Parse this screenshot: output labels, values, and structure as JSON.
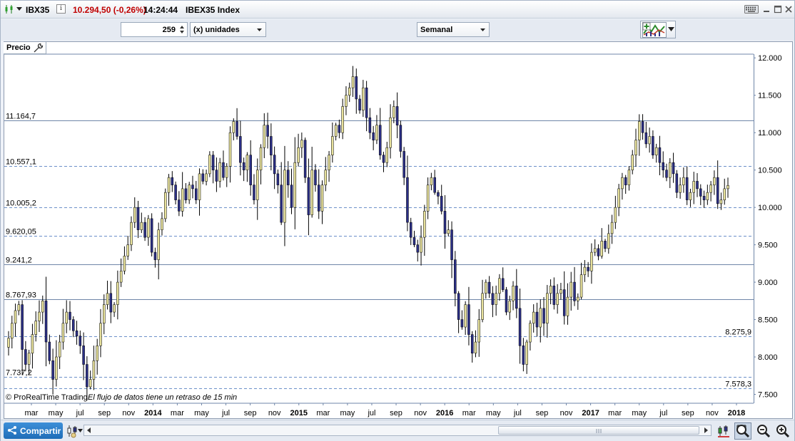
{
  "window": {
    "symbol": "IBX35",
    "info_icon": "i",
    "quote": "10.294,50 (-0,26%)",
    "time": "14:24:44",
    "instrument_name": "IBEX35 Index"
  },
  "toolbar": {
    "units_value": "259",
    "units_label": "(x) unidades",
    "period_label": "Semanal"
  },
  "chart": {
    "price_tab_label": "Precio",
    "footer_brand": "© ProRealTime Trading",
    "footer_note": "El flujo de datos tiene un retraso de 15 min"
  },
  "bottombar": {
    "share_label": "Compartir"
  },
  "colors": {
    "bull_body": "#e8e29c",
    "bear_body": "#2b2f86",
    "wick": "#000000",
    "solid_line": "#6f86a8",
    "dashed_line": "#6b8fc9",
    "accent_quote": "#c00000",
    "share_button": "#2a7fcf"
  },
  "chart_data": {
    "type": "candlestick",
    "period": "Semanal",
    "ylim": [
      7400,
      12050
    ],
    "y_ticks": [
      7500,
      8000,
      8500,
      9000,
      9500,
      10000,
      10500,
      11000,
      11500,
      12000
    ],
    "y_tick_labels": [
      "7.500",
      "8.000",
      "8.500",
      "9.000",
      "9.500",
      "10.000",
      "10.500",
      "11.000",
      "11.500",
      "12.000"
    ],
    "x_labels": [
      "mar",
      "may",
      "jul",
      "sep",
      "nov",
      "2014",
      "mar",
      "may",
      "jul",
      "sep",
      "nov",
      "2015",
      "mar",
      "may",
      "jul",
      "sep",
      "nov",
      "2016",
      "mar",
      "may",
      "jul",
      "sep",
      "nov",
      "2017",
      "mar",
      "may",
      "jul",
      "sep",
      "nov",
      "2018"
    ],
    "levels": [
      {
        "value": 11164.7,
        "label": "11.164,7",
        "style": "solid",
        "label_side": "left"
      },
      {
        "value": 10557.1,
        "label": "10.557,1",
        "style": "dashed",
        "label_side": "left"
      },
      {
        "value": 10005.2,
        "label": "10.005,2",
        "style": "dashed",
        "label_side": "left"
      },
      {
        "value": 9620.05,
        "label": "9.620,05",
        "style": "dashed",
        "label_side": "left"
      },
      {
        "value": 9241.2,
        "label": "9.241,2",
        "style": "solid",
        "label_side": "left"
      },
      {
        "value": 8767.93,
        "label": "8.767,93",
        "style": "solid",
        "label_side": "left"
      },
      {
        "value": 8275.9,
        "label": "8.275,9",
        "style": "dashed",
        "label_side": "right"
      },
      {
        "value": 7737.2,
        "label": "7.737,2",
        "style": "dashed",
        "label_side": "left"
      },
      {
        "value": 7578.3,
        "label": "7.578,3",
        "style": "dashed",
        "label_side": "right"
      }
    ],
    "close_series": [
      8250,
      8450,
      8620,
      8700,
      8100,
      7900,
      8050,
      8300,
      8480,
      8600,
      8750,
      8200,
      7950,
      7700,
      8000,
      8200,
      8450,
      8600,
      8500,
      8350,
      8280,
      8150,
      7900,
      7600,
      7700,
      7950,
      8150,
      8450,
      8700,
      8850,
      8600,
      8700,
      9000,
      9150,
      9350,
      9500,
      9800,
      10000,
      9700,
      9800,
      9600,
      9850,
      9400,
      9300,
      9700,
      9850,
      10200,
      10400,
      10300,
      10100,
      9950,
      10250,
      10100,
      10300,
      10250,
      10100,
      10450,
      10350,
      10450,
      10700,
      10500,
      10350,
      10600,
      10400,
      10550,
      11000,
      11150,
      10950,
      10600,
      10500,
      10700,
      10300,
      10100,
      10500,
      10800,
      11100,
      10950,
      10700,
      10450,
      10300,
      9800,
      10500,
      10300,
      10000,
      10600,
      10800,
      10900,
      10400,
      9900,
      10500,
      10300,
      9950,
      10300,
      10500,
      10700,
      10950,
      11100,
      11000,
      11350,
      11500,
      11600,
      11750,
      11450,
      11300,
      11600,
      11200,
      11000,
      10900,
      11100,
      10700,
      10600,
      10800,
      11200,
      11350,
      11100,
      10750,
      10400,
      9800,
      9600,
      9500,
      9400,
      9600,
      9950,
      10300,
      10400,
      10200,
      10150,
      9950,
      9650,
      9700,
      9300,
      8850,
      8500,
      8400,
      8700,
      8300,
      8050,
      8200,
      8500,
      8850,
      9000,
      8850,
      8700,
      8850,
      9050,
      8900,
      8600,
      8750,
      8950,
      8650,
      8150,
      7900,
      8200,
      8450,
      8600,
      8400,
      8650,
      8450,
      8850,
      8950,
      8700,
      8850,
      8900,
      8550,
      8800,
      9000,
      8750,
      8800,
      9100,
      9200,
      9150,
      9400,
      9450,
      9350,
      9550,
      9450,
      9650,
      9800,
      10000,
      10250,
      10400,
      10300,
      10500,
      10700,
      10900,
      11150,
      11000,
      10850,
      10950,
      10700,
      10800,
      10600,
      10500,
      10400,
      10600,
      10450,
      10200,
      10300,
      10400,
      10100,
      10200,
      10350,
      10250,
      10150,
      10100,
      10200,
      10300,
      10400,
      10050,
      10100,
      10250,
      10294
    ]
  }
}
